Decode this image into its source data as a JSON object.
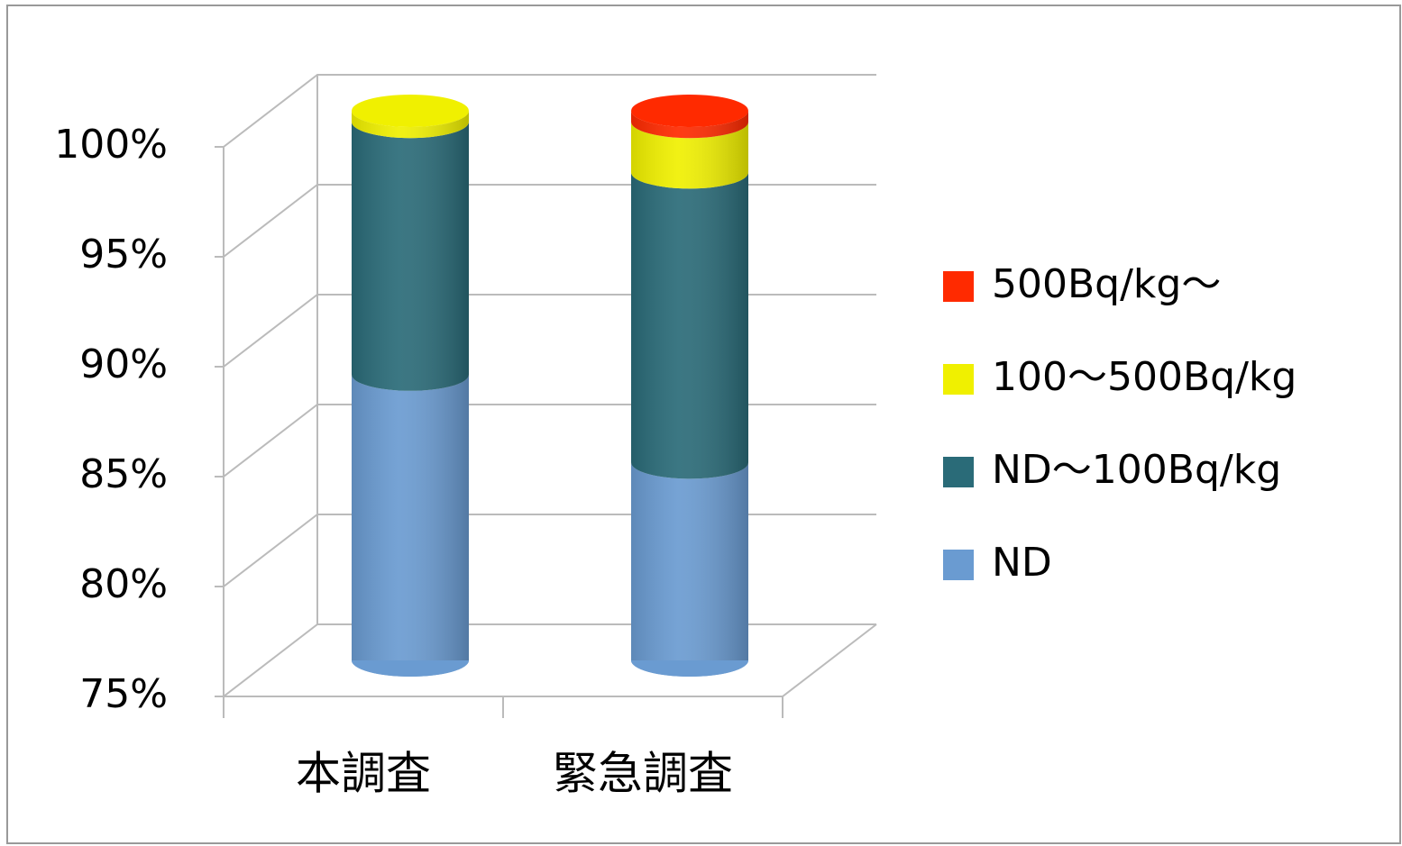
{
  "chart_data": {
    "type": "bar3d_stacked",
    "categories": [
      "本調査",
      "緊急調査"
    ],
    "series": [
      {
        "name": "ND",
        "color": "#6a9bd1",
        "values": [
          88,
          84
        ]
      },
      {
        "name": "ND〜100Bq/kg",
        "color": "#2a6b78",
        "values": [
          11.5,
          13.2
        ]
      },
      {
        "name": "100〜500Bq/kg",
        "color": "#f0f000",
        "values": [
          0.5,
          2.3
        ]
      },
      {
        "name": "500Bq/kg〜",
        "color": "#ff2a00",
        "values": [
          0,
          0.5
        ]
      }
    ],
    "ylim": [
      75,
      100
    ],
    "yticks": [
      {
        "value": 75,
        "label": "75%"
      },
      {
        "value": 80,
        "label": "80%"
      },
      {
        "value": 85,
        "label": "85%"
      },
      {
        "value": 90,
        "label": "90%"
      },
      {
        "value": 95,
        "label": "95%"
      },
      {
        "value": 100,
        "label": "100%"
      }
    ],
    "grid": true,
    "legend": "right"
  }
}
